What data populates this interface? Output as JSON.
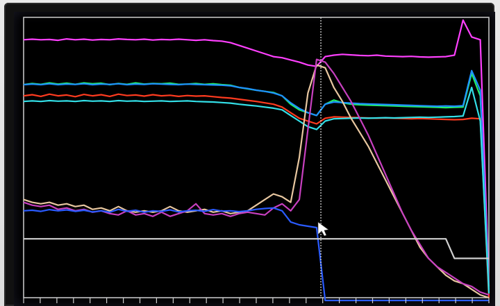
{
  "chart_data": {
    "type": "line",
    "title": "",
    "xlabel": "",
    "ylabel": "",
    "x": [
      0,
      1,
      2,
      3,
      4,
      5,
      6,
      7,
      8,
      9,
      10,
      11,
      12,
      13,
      14,
      15,
      16,
      17,
      18,
      19,
      20,
      21,
      22,
      23,
      24,
      25,
      26,
      27,
      28,
      29,
      30,
      31,
      32,
      33,
      34,
      35,
      36,
      37,
      38,
      39,
      40,
      41,
      42,
      43,
      44,
      45,
      46,
      47,
      48,
      49,
      50,
      51,
      52,
      53,
      54
    ],
    "xlim": [
      0,
      54
    ],
    "ylim": [
      0,
      100
    ],
    "grid": false,
    "legend": "none",
    "cursor_x": 34.5,
    "series": [
      {
        "color": "#ff40ff",
        "values": [
          92,
          92.2,
          92,
          92.1,
          91.8,
          92.3,
          92,
          92.2,
          91.9,
          92.1,
          92,
          92.3,
          92.1,
          92,
          92.2,
          91.9,
          92.1,
          92,
          92.2,
          92,
          91.8,
          92,
          91.7,
          91.5,
          91,
          90,
          89,
          88,
          87,
          86,
          85.6,
          84.8,
          84,
          83,
          82.5,
          86,
          86.5,
          86.8,
          86.6,
          86.4,
          86.3,
          86.5,
          86.2,
          86.1,
          86,
          86.1,
          85.9,
          85.8,
          85.9,
          86,
          86.5,
          99,
          93,
          92,
          4
        ]
      },
      {
        "color": "#22ee66",
        "values": [
          76,
          76.4,
          76.1,
          76.6,
          76.2,
          76.5,
          76.1,
          76.6,
          76.3,
          76.5,
          76,
          76.4,
          76.1,
          76.6,
          76.2,
          76.4,
          76.3,
          76.5,
          76.1,
          76.2,
          76.4,
          76.1,
          76.3,
          76,
          75.8,
          75,
          74.5,
          74,
          73.6,
          73.2,
          72,
          69,
          67,
          66,
          65,
          69,
          70.5,
          69.5,
          69,
          68.8,
          68.7,
          68.6,
          68.5,
          68.4,
          68.3,
          68.2,
          68.1,
          68,
          67.9,
          67.8,
          67.9,
          68,
          80,
          72,
          3
        ]
      },
      {
        "color": "#1e90ff",
        "values": [
          76,
          76.2,
          76,
          76.3,
          76,
          76.2,
          76.1,
          76.3,
          76,
          76.2,
          76.1,
          76.3,
          76,
          76.2,
          76.1,
          76.3,
          76.2,
          76.1,
          76,
          76.2,
          76.1,
          76,
          75.9,
          75.8,
          75.6,
          75,
          74.6,
          74,
          73.6,
          73,
          72,
          69.5,
          67.5,
          66,
          65,
          69,
          69.8,
          69.6,
          69.4,
          69.2,
          69.1,
          69,
          68.9,
          68.8,
          68.7,
          68.6,
          68.5,
          68.4,
          68.3,
          68.4,
          68.3,
          68.5,
          81,
          74,
          2
        ]
      },
      {
        "color": "#ff3b1f",
        "values": [
          72,
          72.4,
          71.8,
          72.6,
          72,
          72.3,
          71.7,
          72.5,
          72,
          72.4,
          71.8,
          72.6,
          72.1,
          72.3,
          71.9,
          72.4,
          72,
          72.2,
          71.8,
          72.1,
          71.9,
          72,
          71.7,
          71.4,
          71.2,
          70.8,
          70.4,
          70,
          69.5,
          69,
          68,
          66,
          64,
          63,
          62,
          64,
          64.5,
          64.4,
          64.3,
          64.2,
          64.1,
          64,
          64.1,
          64,
          63.9,
          63.8,
          63.9,
          63.8,
          63.7,
          63.6,
          63.5,
          63.6,
          64,
          63.8,
          0
        ]
      },
      {
        "color": "#33e0e8",
        "values": [
          70,
          70.2,
          70,
          70.3,
          70.1,
          70.2,
          70,
          70.3,
          70.1,
          70.2,
          70,
          70.3,
          70.1,
          70.2,
          70,
          70.1,
          70.2,
          70,
          70.1,
          70.2,
          70,
          69.9,
          69.8,
          69.6,
          69.4,
          69,
          68.7,
          68.4,
          68,
          67.6,
          67,
          65,
          63,
          61,
          60,
          63,
          63.8,
          63.9,
          64,
          64.1,
          64,
          64.1,
          64.2,
          64.1,
          64.2,
          64.3,
          64.4,
          64.3,
          64.4,
          64.5,
          64.6,
          64.8,
          75,
          63,
          1.5
        ]
      },
      {
        "color": "#e8c7a0",
        "values": [
          35,
          34,
          33.5,
          34,
          33,
          33.5,
          32.5,
          33,
          31.5,
          32,
          31,
          32.5,
          31,
          30.5,
          31,
          30.5,
          31,
          32.5,
          31,
          30.5,
          31,
          31.5,
          30.5,
          31,
          30,
          30.5,
          31,
          33,
          35,
          37,
          36,
          34,
          50,
          73,
          83,
          82,
          75,
          70,
          64,
          59,
          54,
          48,
          42,
          36,
          30,
          24,
          18,
          14,
          11,
          8,
          6,
          5,
          3,
          1,
          0
        ]
      },
      {
        "color": "#c840c0",
        "values": [
          34,
          33,
          32.5,
          33,
          31.5,
          32,
          31,
          31.5,
          30.5,
          31,
          30,
          29.5,
          31,
          29.5,
          30,
          29,
          30.5,
          29,
          30,
          31,
          33.5,
          30,
          29.5,
          30,
          29,
          30,
          30.5,
          30,
          29.5,
          32,
          33.5,
          31,
          35,
          60,
          85,
          84,
          80,
          75,
          70,
          64,
          58,
          51,
          44,
          37,
          30,
          24,
          19,
          14,
          11,
          9,
          7,
          5,
          4,
          2,
          1
        ]
      },
      {
        "color": "#2a5bff",
        "values": [
          31,
          31.2,
          30.8,
          31.4,
          31,
          31.3,
          30.8,
          31.2,
          30.6,
          31,
          30.5,
          31.5,
          30.8,
          31.2,
          30.5,
          31,
          30.8,
          31.3,
          30.6,
          31,
          31.2,
          30.8,
          31.4,
          30.9,
          31,
          30.7,
          31,
          31.5,
          31.8,
          32,
          31,
          27,
          26,
          25.5,
          25,
          -1,
          -1,
          -1,
          -1,
          -1,
          -1,
          -1,
          -1,
          -1,
          -1,
          -1,
          -1,
          -1,
          -1,
          -1,
          -1,
          -1,
          -1,
          -1,
          -1
        ]
      },
      {
        "color": "#d0d0d0",
        "values": [
          21,
          21,
          21,
          21,
          21,
          21,
          21,
          21,
          21,
          21,
          21,
          21,
          21,
          21,
          21,
          21,
          21,
          21,
          21,
          21,
          21,
          21,
          21,
          21,
          21,
          21,
          21,
          21,
          21,
          21,
          21,
          21,
          21,
          21,
          21,
          21,
          21,
          21,
          21,
          21,
          21,
          21,
          21,
          21,
          21,
          21,
          21,
          21,
          21,
          21,
          14,
          14,
          14,
          14,
          14
        ]
      }
    ]
  }
}
